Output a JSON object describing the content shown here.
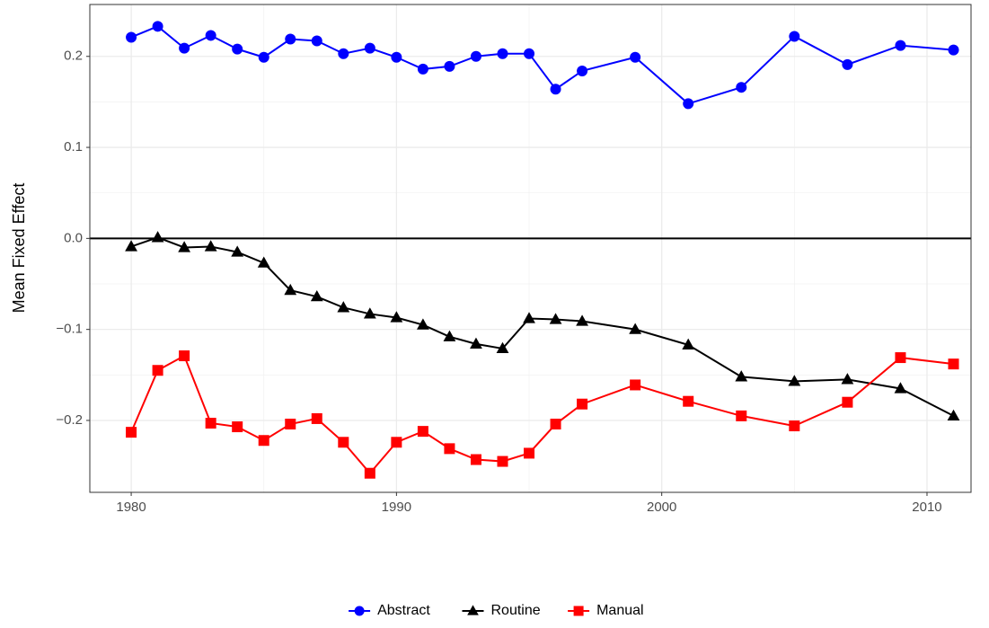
{
  "chart_data": {
    "type": "line",
    "y_label": "Mean Fixed Effect",
    "x": [
      1980,
      1981,
      1982,
      1983,
      1984,
      1985,
      1986,
      1987,
      1988,
      1989,
      1990,
      1991,
      1992,
      1993,
      1994,
      1995,
      1996,
      1997,
      1999,
      2001,
      2003,
      2005,
      2007,
      2009,
      2011
    ],
    "series": [
      {
        "name": "Abstract",
        "color": "#0000ff",
        "shape": "circle",
        "values": [
          0.221,
          0.233,
          0.209,
          0.223,
          0.208,
          0.199,
          0.219,
          0.217,
          0.203,
          0.209,
          0.199,
          0.186,
          0.189,
          0.2,
          0.203,
          0.203,
          0.164,
          0.184,
          0.199,
          0.148,
          0.166,
          0.222,
          0.191,
          0.212,
          0.207
        ]
      },
      {
        "name": "Routine",
        "color": "#000000",
        "shape": "triangle",
        "values": [
          -0.009,
          0.001,
          -0.01,
          -0.009,
          -0.015,
          -0.027,
          -0.057,
          -0.064,
          -0.076,
          -0.083,
          -0.087,
          -0.095,
          -0.108,
          -0.116,
          -0.121,
          -0.088,
          -0.089,
          -0.091,
          -0.1,
          -0.117,
          -0.152,
          -0.157,
          -0.155,
          -0.165,
          -0.195
        ]
      },
      {
        "name": "Manual",
        "color": "#ff0000",
        "shape": "square",
        "values": [
          -0.213,
          -0.145,
          -0.129,
          -0.203,
          -0.207,
          -0.222,
          -0.204,
          -0.198,
          -0.224,
          -0.258,
          -0.224,
          -0.212,
          -0.231,
          -0.243,
          -0.245,
          -0.236,
          -0.204,
          -0.182,
          -0.161,
          -0.179,
          -0.195,
          -0.206,
          -0.18,
          -0.131,
          -0.138
        ]
      }
    ],
    "hline": 0,
    "xlim": [
      1978.44,
      2011.66
    ],
    "ylim": [
      -0.279,
      0.257
    ],
    "xticks": [
      1980,
      1990,
      2000,
      2010
    ],
    "yticks": [
      {
        "value": -0.2,
        "label": "−0.2"
      },
      {
        "value": -0.1,
        "label": "−0.1"
      },
      {
        "value": 0,
        "label": "0.0"
      },
      0.1,
      0.2
    ],
    "grid": true,
    "legend": "bottom"
  }
}
